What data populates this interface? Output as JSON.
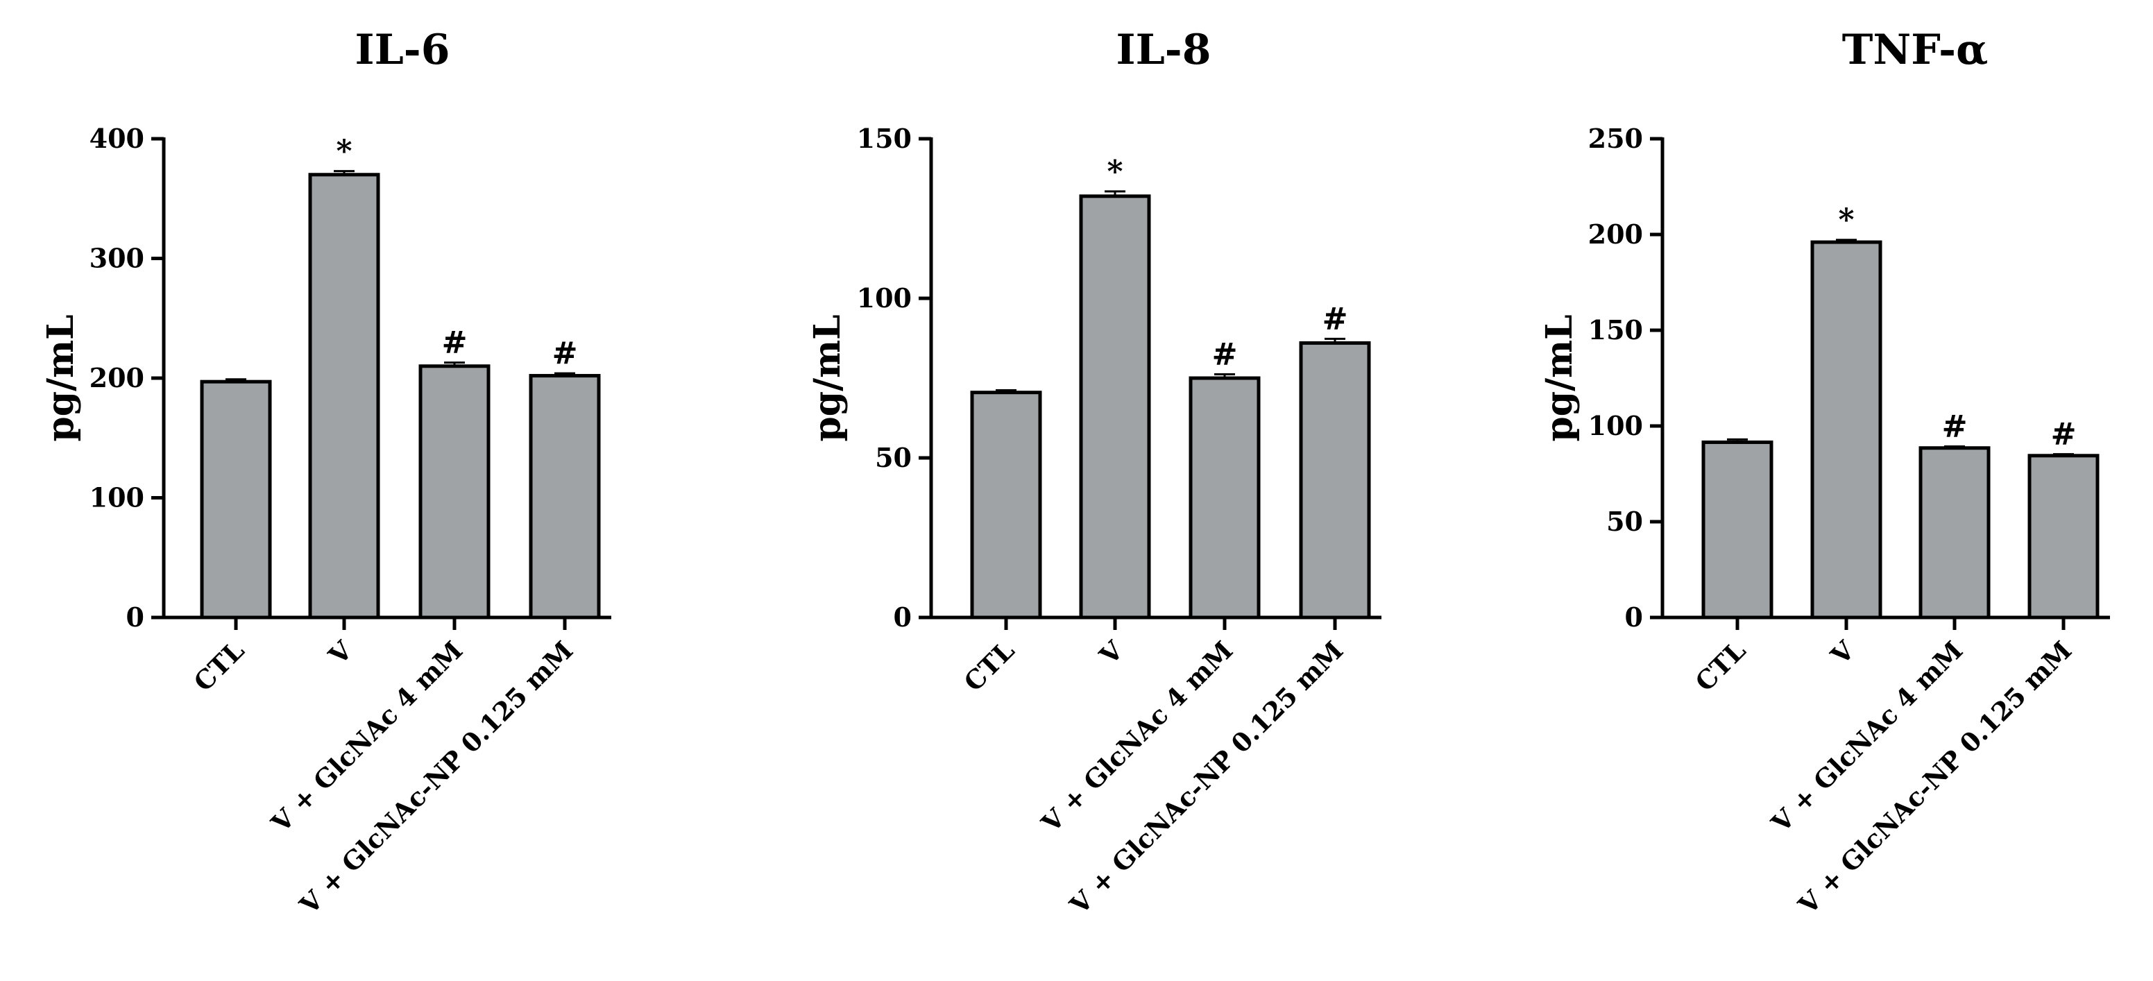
{
  "chart_data": [
    {
      "type": "bar",
      "title": "IL-6",
      "ylabel": "pg/mL",
      "xlabel": "",
      "ylim": [
        0,
        400
      ],
      "yticks": [
        "0",
        "100",
        "200",
        "300",
        "400"
      ],
      "categories": [
        "CTL",
        "V",
        "V + GlcNAc 4 mM",
        "V + GlcNAc-NP 0.125 mM"
      ],
      "values": [
        197,
        370,
        210,
        202
      ],
      "errors": [
        2,
        3,
        3,
        2
      ],
      "annotations": [
        "",
        "*",
        "#",
        "#"
      ],
      "bar_color": "#a0a3a6",
      "grid": false
    },
    {
      "type": "bar",
      "title": "IL-8",
      "ylabel": "pg/mL",
      "xlabel": "",
      "ylim": [
        0,
        150
      ],
      "yticks": [
        "0",
        "50",
        "100",
        "150"
      ],
      "categories": [
        "CTL",
        "V",
        "V + GlcNAc 4 mM",
        "V + GlcNAc-NP 0.125 mM"
      ],
      "values": [
        70.5,
        132,
        75,
        86
      ],
      "errors": [
        0.7,
        1.5,
        1.2,
        1.3
      ],
      "annotations": [
        "",
        "*",
        "#",
        "#"
      ],
      "bar_color": "#a0a3a6",
      "grid": false
    },
    {
      "type": "bar",
      "title": "TNF-α",
      "ylabel": "pg/mL",
      "xlabel": "",
      "ylim": [
        0,
        250
      ],
      "yticks": [
        "0",
        "50",
        "100",
        "150",
        "200",
        "250"
      ],
      "categories": [
        "CTL",
        "V",
        "V + GlcNAc 4 mM",
        "V + GlcNAc-NP 0.125 mM"
      ],
      "values": [
        91.5,
        196,
        88.5,
        84.5
      ],
      "errors": [
        1.5,
        1.2,
        0.8,
        0.8
      ],
      "annotations": [
        "",
        "*",
        "#",
        "#"
      ],
      "bar_color": "#a0a3a6",
      "grid": false
    }
  ]
}
